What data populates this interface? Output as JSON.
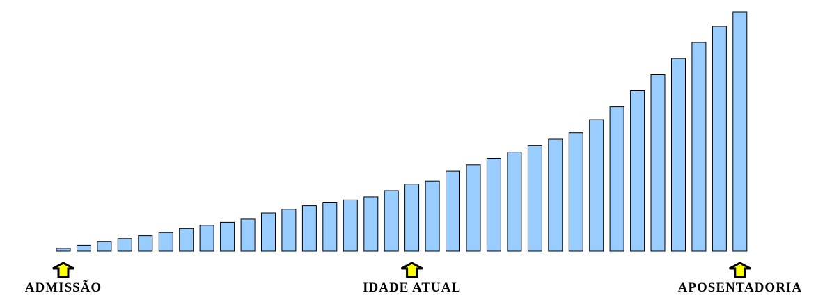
{
  "chart_data": {
    "type": "bar",
    "values": [
      1.2,
      2.5,
      4.0,
      5.3,
      6.5,
      7.8,
      9.5,
      10.8,
      12.1,
      13.4,
      16.0,
      17.5,
      19.0,
      20.2,
      21.4,
      22.7,
      25.3,
      28.0,
      29.3,
      33.4,
      36.1,
      38.8,
      41.4,
      44.1,
      46.8,
      49.5,
      54.9,
      60.3,
      67.0,
      73.7,
      80.5,
      87.2,
      93.9,
      100.0
    ],
    "ylim": [
      0,
      100
    ],
    "bar_color": "#99ccff",
    "bar_stroke": "#000000",
    "markers": [
      {
        "label": "ADMISSÃO",
        "bar_index": 0,
        "color": "#ffff00"
      },
      {
        "label": "IDADE ATUAL",
        "bar_index": 17,
        "color": "#ffff00"
      },
      {
        "label": "APOSENTADORIA",
        "bar_index": 33,
        "color": "#ffff00"
      }
    ]
  }
}
